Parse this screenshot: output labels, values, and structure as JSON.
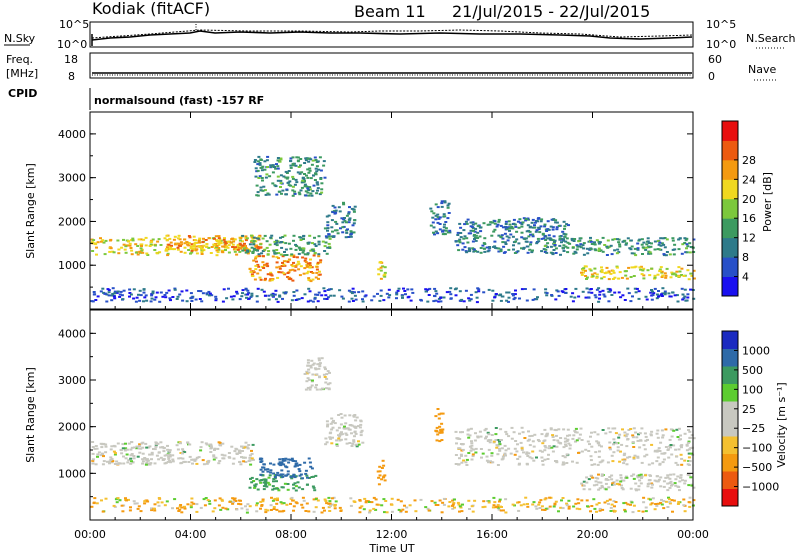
{
  "header": {
    "station": "Kodiak (fitACF)",
    "beam": "Beam 11",
    "date_range": "21/Jul/2015 - 22/Jul/2015"
  },
  "status_panels": {
    "nsky_label": "N.Sky",
    "nsearch_label": "N.Search",
    "noise_ticks_left": [
      "10^5",
      "10^0"
    ],
    "noise_ticks_right": [
      "10^5",
      "10^0"
    ],
    "freq_label_line1": "Freq.",
    "freq_label_line2": "[MHz]",
    "freq_ticks": [
      "18",
      "8"
    ],
    "nave_label": "Nave",
    "nave_ticks": [
      "60",
      "0"
    ],
    "cpid_label": "CPID",
    "cpid_text": "normalsound (fast) -157 RF"
  },
  "colors": {
    "power_scale": [
      "#1a10f0",
      "#2850c8",
      "#2e7a8a",
      "#3c9a60",
      "#7cc83c",
      "#f0d820",
      "#f49a10",
      "#ec5a10",
      "#e80e0e"
    ],
    "velocity_scale": [
      "#e80e0e",
      "#ec5a10",
      "#f49a10",
      "#f4c030",
      "#c8c8c0",
      "#c8c8c0",
      "#5ccc30",
      "#3c9a60",
      "#2e6aa8",
      "#1a2ac0"
    ],
    "ground_scatter": "#c8c8c0"
  },
  "chart_data": [
    {
      "type": "heatmap",
      "panel": "power",
      "ylabel": "Slant Range [km]",
      "xlabel": "",
      "ylim": [
        0,
        4500
      ],
      "yticks": [
        "1000",
        "2000",
        "3000",
        "4000"
      ],
      "xlim_hours": [
        0,
        24
      ],
      "colorbar_label": "Power [dB]",
      "colorbar_ticks": [
        "4",
        "8",
        "12",
        "16",
        "20",
        "24",
        "28"
      ],
      "scatter_regions": [
        {
          "t0": 0.0,
          "t1": 6.3,
          "r0": 1250,
          "r1": 1650,
          "power_db": 22
        },
        {
          "t0": 3.0,
          "t1": 7.0,
          "r0": 1350,
          "r1": 1700,
          "power_db": 26
        },
        {
          "t0": 6.3,
          "t1": 9.2,
          "r0": 650,
          "r1": 1250,
          "power_db": 27
        },
        {
          "t0": 6.0,
          "t1": 9.5,
          "r0": 1250,
          "r1": 1700,
          "power_db": 14
        },
        {
          "t0": 6.5,
          "t1": 9.3,
          "r0": 2600,
          "r1": 3500,
          "power_db": 12
        },
        {
          "t0": 9.3,
          "t1": 10.5,
          "r0": 1650,
          "r1": 2450,
          "power_db": 10
        },
        {
          "t0": 11.4,
          "t1": 11.7,
          "r0": 700,
          "r1": 1300,
          "power_db": 22
        },
        {
          "t0": 13.5,
          "t1": 14.3,
          "r0": 1700,
          "r1": 2500,
          "power_db": 10
        },
        {
          "t0": 14.5,
          "t1": 19.0,
          "r0": 1300,
          "r1": 2100,
          "power_db": 10
        },
        {
          "t0": 18.0,
          "t1": 24.0,
          "r0": 1250,
          "r1": 1650,
          "power_db": 12
        },
        {
          "t0": 19.5,
          "t1": 24.0,
          "r0": 700,
          "r1": 1000,
          "power_db": 22
        },
        {
          "t0": 0.0,
          "t1": 24.0,
          "r0": 180,
          "r1": 500,
          "power_db": 6
        }
      ]
    },
    {
      "type": "heatmap",
      "panel": "velocity",
      "ylabel": "Slant Range [km]",
      "xlabel": "Time UT",
      "ylim": [
        0,
        4500
      ],
      "yticks": [
        "1000",
        "2000",
        "3000",
        "4000"
      ],
      "xticks": [
        "00:00",
        "04:00",
        "08:00",
        "12:00",
        "16:00",
        "20:00",
        "00:00"
      ],
      "xlim_hours": [
        0,
        24
      ],
      "colorbar_label": "Velocity [m s⁻¹]",
      "colorbar_ticks": [
        "1000",
        "500",
        "100",
        "25",
        "−25",
        "−100",
        "−500",
        "−1000"
      ],
      "scatter_regions": [
        {
          "t0": 0.0,
          "t1": 6.5,
          "r0": 1200,
          "r1": 1700,
          "velocity": 0
        },
        {
          "t0": 6.3,
          "t1": 9.0,
          "r0": 650,
          "r1": 1000,
          "velocity": 200
        },
        {
          "t0": 6.7,
          "t1": 8.8,
          "r0": 900,
          "r1": 1350,
          "velocity": 700
        },
        {
          "t0": 8.5,
          "t1": 9.5,
          "r0": 2800,
          "r1": 3500,
          "velocity": 0
        },
        {
          "t0": 9.3,
          "t1": 10.8,
          "r0": 1600,
          "r1": 2300,
          "velocity": 0
        },
        {
          "t0": 11.4,
          "t1": 11.7,
          "r0": 750,
          "r1": 1300,
          "velocity": -300
        },
        {
          "t0": 13.7,
          "t1": 14.0,
          "r0": 1700,
          "r1": 2600,
          "velocity": -300
        },
        {
          "t0": 14.5,
          "t1": 24.0,
          "r0": 1200,
          "r1": 2000,
          "velocity": 0
        },
        {
          "t0": 19.5,
          "t1": 24.0,
          "r0": 650,
          "r1": 1000,
          "velocity": 0
        },
        {
          "t0": 0.0,
          "t1": 24.0,
          "r0": 180,
          "r1": 500,
          "velocity": -80
        }
      ]
    }
  ]
}
